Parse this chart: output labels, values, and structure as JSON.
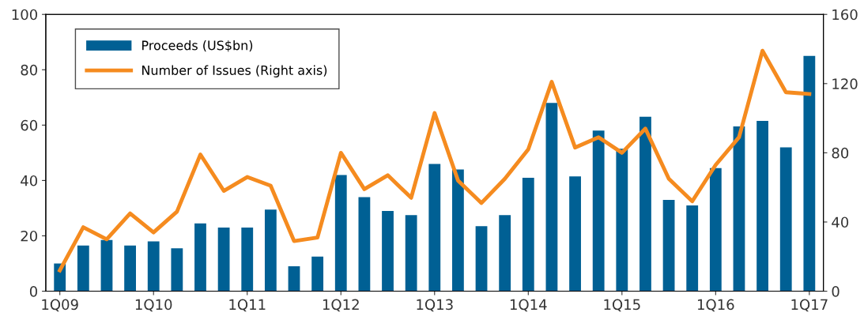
{
  "chart_data": {
    "type": "bar",
    "categories": [
      "1Q09",
      null,
      null,
      null,
      "1Q10",
      null,
      null,
      null,
      "1Q11",
      null,
      null,
      null,
      "1Q12",
      null,
      null,
      null,
      "1Q13",
      null,
      null,
      null,
      "1Q14",
      null,
      null,
      null,
      "1Q15",
      null,
      null,
      null,
      "1Q16",
      null,
      null,
      null,
      "1Q17"
    ],
    "series": [
      {
        "name": "Proceeds (US$bn)",
        "color": "#006094",
        "values": [
          10,
          16.5,
          18.5,
          16.5,
          18,
          15.5,
          24.5,
          23,
          23,
          29.5,
          9,
          12.5,
          42,
          34,
          29,
          27.5,
          46,
          44,
          23.5,
          27.5,
          41,
          68,
          41.5,
          58,
          51.5,
          63,
          33,
          31,
          44.5,
          59.5,
          61.5,
          52,
          85
        ]
      },
      {
        "name": "Number of Issues (Right axis)",
        "type": "line",
        "axis": "y2",
        "color": "#f58b1f",
        "values": [
          12,
          37,
          30,
          45,
          34,
          46,
          79,
          58,
          66,
          61,
          29,
          31,
          80,
          59,
          67,
          54,
          103,
          64,
          51,
          65,
          82,
          121,
          83,
          89,
          80,
          94,
          65,
          52,
          73,
          89,
          139,
          115,
          114
        ]
      }
    ],
    "ylim": [
      0,
      100
    ],
    "yticks": [
      0,
      20,
      40,
      60,
      80,
      100
    ],
    "y2lim": [
      0,
      160
    ],
    "y2ticks": [
      0,
      40,
      80,
      120,
      160
    ],
    "grid": false,
    "legend": "top left",
    "marker": "none",
    "line_style": "solid"
  }
}
